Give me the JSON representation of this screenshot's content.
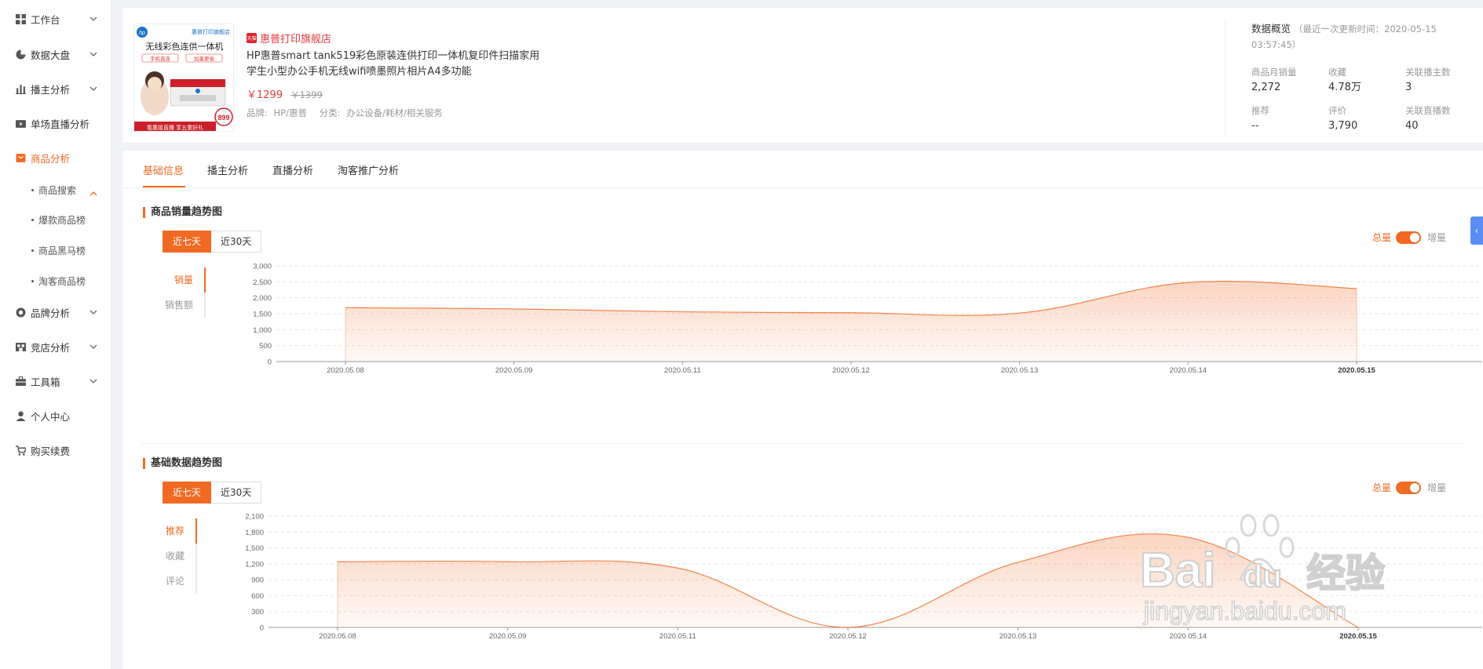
{
  "sidebar": {
    "items": [
      {
        "label": "工作台",
        "icon": "grid-icon",
        "has_chevron": true
      },
      {
        "label": "数据大盘",
        "icon": "pie-chart-icon",
        "has_chevron": true
      },
      {
        "label": "播主分析",
        "icon": "bar-chart-icon",
        "has_chevron": true
      },
      {
        "label": "单场直播分析",
        "icon": "video-icon",
        "has_chevron": false
      },
      {
        "label": "商品分析",
        "icon": "bag-icon",
        "has_chevron": false,
        "active": true
      },
      {
        "label": "品牌分析",
        "icon": "brand-icon",
        "has_chevron": true
      },
      {
        "label": "竞店分析",
        "icon": "store-icon",
        "has_chevron": true
      },
      {
        "label": "工具箱",
        "icon": "toolbox-icon",
        "has_chevron": true
      },
      {
        "label": "个人中心",
        "icon": "user-icon",
        "has_chevron": false
      },
      {
        "label": "购买续费",
        "icon": "cart-icon",
        "has_chevron": false
      }
    ],
    "sub_items": [
      "商品搜索",
      "爆款商品榜",
      "商品黑马榜",
      "淘客商品榜"
    ]
  },
  "product": {
    "image_text": {
      "top_right": "惠普打印旗舰店",
      "headline": "无线彩色连供一体机",
      "tag1": "手机直连",
      "tag2": "加墨更省",
      "footer": "看惠姐直播 享五重好礼",
      "price_badge": "899",
      "brand_mark": "hp"
    },
    "store_badge": "天猫",
    "store_name": "惠普打印旗舰店",
    "title": "HP惠普smart tank519彩色原装连供打印一体机复印件扫描家用学生小型办公手机无线wifi喷墨照片相片A4多功能",
    "price_now": "￥1299",
    "price_old": "￥1399",
    "brand_label": "品牌:",
    "brand_value": "HP/惠普",
    "category_label": "分类:",
    "category_value": "办公设备/耗材/相关服务"
  },
  "overview": {
    "title": "数据概览",
    "updated_prefix": "（最近一次更新时间：2020-05-15",
    "updated_time": "03:57:45）",
    "stats": [
      {
        "label": "商品月销量",
        "value": "2,272"
      },
      {
        "label": "收藏",
        "value": "4.78万"
      },
      {
        "label": "关联播主数",
        "value": "3"
      },
      {
        "label": "推荐",
        "value": "--"
      },
      {
        "label": "评价",
        "value": "3,790"
      },
      {
        "label": "关联直播数",
        "value": "40"
      }
    ]
  },
  "tabs": [
    "基础信息",
    "播主分析",
    "直播分析",
    "淘客推广分析"
  ],
  "section1": {
    "title": "商品销量趋势图",
    "range_buttons": [
      "近七天",
      "近30天"
    ],
    "toggle_on": "总量",
    "toggle_off": "增量",
    "metrics": [
      "销量",
      "销售额"
    ]
  },
  "section2": {
    "title": "基础数据趋势图",
    "range_buttons": [
      "近七天",
      "近30天"
    ],
    "toggle_on": "总量",
    "toggle_off": "增量",
    "metrics": [
      "推荐",
      "收藏",
      "评论"
    ]
  },
  "side_handle": "‹",
  "watermark": {
    "brand": "Bai",
    "brand_du": "du",
    "cn": "经验",
    "url": "jingyan.baidu.com"
  },
  "colors": {
    "accent": "#f06a23",
    "price": "#e4393c",
    "handle": "#5a8cf5"
  },
  "chart_data": [
    {
      "type": "area",
      "categories": [
        "2020.05.08",
        "2020.05.09",
        "2020.05.11",
        "2020.05.12",
        "2020.05.13",
        "2020.05.14",
        "2020.05.15"
      ],
      "yticks": [
        "0",
        "500",
        "1,000",
        "1,500",
        "2,000",
        "2,500",
        "3,000"
      ],
      "ylim": [
        0,
        3000
      ],
      "series": [
        {
          "values": [
            1690,
            1650,
            1560,
            1530,
            1520,
            2480,
            2290
          ]
        }
      ]
    },
    {
      "type": "area",
      "categories": [
        "2020.05.08",
        "2020.05.09",
        "2020.05.11",
        "2020.05.12",
        "2020.05.13",
        "2020.05.14",
        "2020.05.15"
      ],
      "yticks": [
        "0",
        "300",
        "600",
        "900",
        "1,200",
        "1,500",
        "1,800",
        "2,100"
      ],
      "ylim": [
        0,
        2100
      ],
      "series": [
        {
          "values": [
            1240,
            1240,
            1120,
            0,
            1230,
            1700,
            0
          ]
        }
      ]
    }
  ]
}
